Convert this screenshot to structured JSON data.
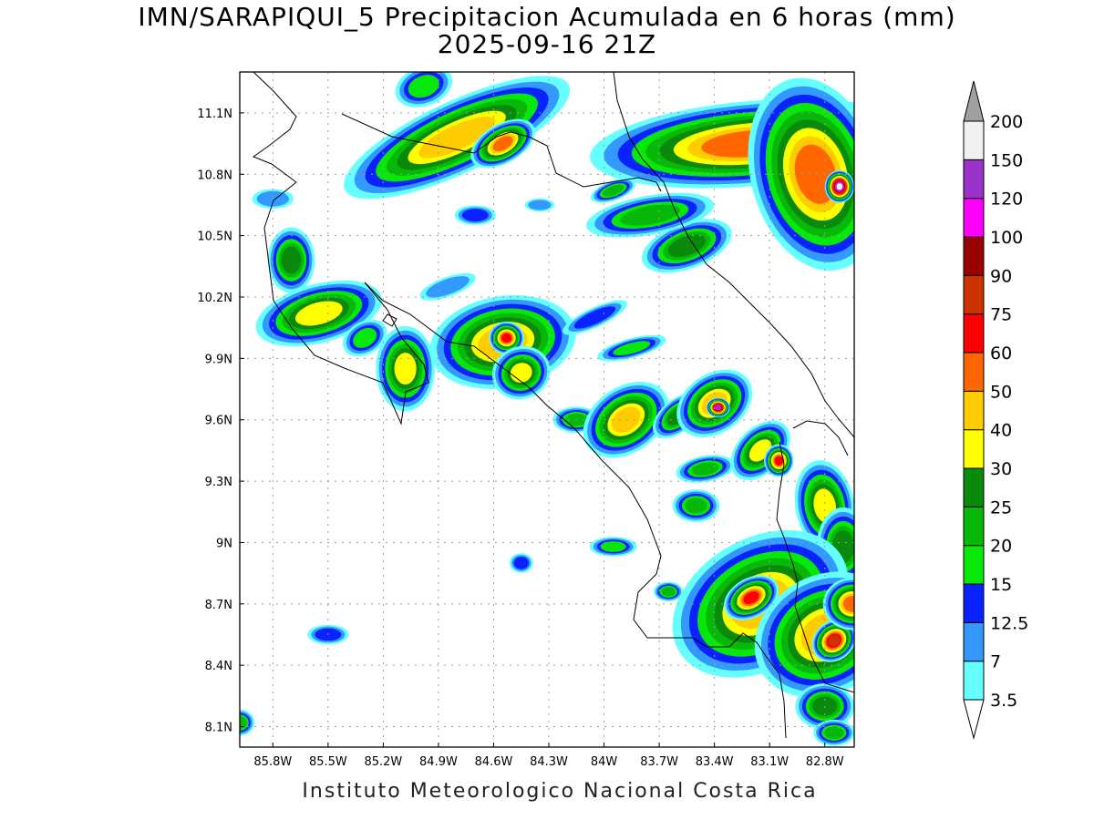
{
  "title_line1": "IMN/SARAPIQUI_5 Precipitacion Acumulada en 6 horas (mm)",
  "title_line2": "2025-09-16 21Z",
  "footer": "Instituto Meteorologico Nacional Costa Rica",
  "lat_labels": [
    "11.1N",
    "10.8N",
    "10.5N",
    "10.2N",
    "9.9N",
    "9.6N",
    "9.3N",
    "9N",
    "8.7N",
    "8.4N",
    "8.1N"
  ],
  "lat_values": [
    11.1,
    10.8,
    10.5,
    10.2,
    9.9,
    9.6,
    9.3,
    9.0,
    8.7,
    8.4,
    8.1
  ],
  "lon_labels": [
    "85.8W",
    "85.5W",
    "85.2W",
    "84.9W",
    "84.6W",
    "84.3W",
    "84W",
    "83.7W",
    "83.4W",
    "83.1W",
    "82.8W"
  ],
  "lon_values": [
    -85.8,
    -85.5,
    -85.2,
    -84.9,
    -84.6,
    -84.3,
    -84.0,
    -83.7,
    -83.4,
    -83.1,
    -82.8
  ],
  "colorbar": {
    "labels": [
      "3.5",
      "7",
      "12.5",
      "15",
      "20",
      "25",
      "30",
      "40",
      "50",
      "60",
      "75",
      "90",
      "100",
      "120",
      "150",
      "200"
    ],
    "colors": [
      "#66ffff",
      "#3399ff",
      "#0a22ff",
      "#08e808",
      "#08b808",
      "#0a8a0a",
      "#ffff00",
      "#ffcc00",
      "#ff6600",
      "#ff0000",
      "#cc3300",
      "#990000",
      "#ff00ff",
      "#9933cc",
      "#f0f0f0"
    ],
    "upper_arrow_color": "#a0a0a0",
    "lower_arrow_color": "#ffffff"
  },
  "precip_cells": [
    {
      "x": -84.8,
      "y": 10.98,
      "rx": 0.42,
      "ry": 0.11,
      "rot": -25,
      "level": 7
    },
    {
      "x": -84.55,
      "y": 10.95,
      "rx": 0.12,
      "ry": 0.06,
      "rot": -30,
      "level": 8
    },
    {
      "x": -84.98,
      "y": 11.23,
      "rx": 0.1,
      "ry": 0.06,
      "rot": -20,
      "level": 3
    },
    {
      "x": -83.2,
      "y": 10.95,
      "rx": 0.55,
      "ry": 0.13,
      "rot": -5,
      "level": 8
    },
    {
      "x": -82.85,
      "y": 10.8,
      "rx": 0.22,
      "ry": 0.3,
      "rot": -15,
      "level": 8
    },
    {
      "x": -82.72,
      "y": 10.74,
      "rx": 0.05,
      "ry": 0.05,
      "rot": 0,
      "level": 14
    },
    {
      "x": -83.55,
      "y": 10.45,
      "rx": 0.16,
      "ry": 0.07,
      "rot": -20,
      "level": 5
    },
    {
      "x": -83.75,
      "y": 10.6,
      "rx": 0.22,
      "ry": 0.06,
      "rot": -10,
      "level": 4
    },
    {
      "x": -85.7,
      "y": 10.38,
      "rx": 0.08,
      "ry": 0.1,
      "rot": 0,
      "level": 5
    },
    {
      "x": -85.55,
      "y": 10.12,
      "rx": 0.22,
      "ry": 0.09,
      "rot": -15,
      "level": 6
    },
    {
      "x": -85.3,
      "y": 10.0,
      "rx": 0.08,
      "ry": 0.05,
      "rot": -30,
      "level": 3
    },
    {
      "x": -85.08,
      "y": 9.85,
      "rx": 0.1,
      "ry": 0.13,
      "rot": 0,
      "level": 6
    },
    {
      "x": -84.55,
      "y": 9.98,
      "rx": 0.25,
      "ry": 0.14,
      "rot": -10,
      "level": 7
    },
    {
      "x": -84.53,
      "y": 10.0,
      "rx": 0.06,
      "ry": 0.05,
      "rot": 0,
      "level": 9
    },
    {
      "x": -84.45,
      "y": 9.83,
      "rx": 0.1,
      "ry": 0.08,
      "rot": -20,
      "level": 6
    },
    {
      "x": -84.15,
      "y": 9.6,
      "rx": 0.08,
      "ry": 0.04,
      "rot": 0,
      "level": 4
    },
    {
      "x": -83.88,
      "y": 9.6,
      "rx": 0.16,
      "ry": 0.1,
      "rot": -35,
      "level": 7
    },
    {
      "x": -83.6,
      "y": 9.62,
      "rx": 0.1,
      "ry": 0.05,
      "rot": -40,
      "level": 5
    },
    {
      "x": -83.4,
      "y": 9.68,
      "rx": 0.14,
      "ry": 0.09,
      "rot": -35,
      "level": 7
    },
    {
      "x": -83.38,
      "y": 9.66,
      "rx": 0.04,
      "ry": 0.03,
      "rot": 0,
      "level": 13
    },
    {
      "x": -83.15,
      "y": 9.45,
      "rx": 0.12,
      "ry": 0.07,
      "rot": -45,
      "level": 6
    },
    {
      "x": -83.05,
      "y": 9.4,
      "rx": 0.05,
      "ry": 0.05,
      "rot": 0,
      "level": 9
    },
    {
      "x": -83.45,
      "y": 9.36,
      "rx": 0.1,
      "ry": 0.04,
      "rot": -10,
      "level": 4
    },
    {
      "x": -83.5,
      "y": 9.18,
      "rx": 0.08,
      "ry": 0.05,
      "rot": 0,
      "level": 4
    },
    {
      "x": -82.8,
      "y": 9.18,
      "rx": 0.1,
      "ry": 0.14,
      "rot": -10,
      "level": 6
    },
    {
      "x": -82.7,
      "y": 8.98,
      "rx": 0.09,
      "ry": 0.12,
      "rot": 0,
      "level": 5
    },
    {
      "x": -83.15,
      "y": 8.7,
      "rx": 0.32,
      "ry": 0.2,
      "rot": -30,
      "level": 7
    },
    {
      "x": -83.2,
      "y": 8.73,
      "rx": 0.1,
      "ry": 0.06,
      "rot": -30,
      "level": 9
    },
    {
      "x": -82.8,
      "y": 8.55,
      "rx": 0.25,
      "ry": 0.18,
      "rot": -30,
      "level": 7
    },
    {
      "x": -82.75,
      "y": 8.52,
      "rx": 0.08,
      "ry": 0.06,
      "rot": -40,
      "level": 10
    },
    {
      "x": -82.65,
      "y": 8.7,
      "rx": 0.1,
      "ry": 0.08,
      "rot": 0,
      "level": 8
    },
    {
      "x": -82.8,
      "y": 8.2,
      "rx": 0.1,
      "ry": 0.07,
      "rot": 0,
      "level": 5
    },
    {
      "x": -82.75,
      "y": 8.07,
      "rx": 0.07,
      "ry": 0.04,
      "rot": 0,
      "level": 4
    },
    {
      "x": -83.65,
      "y": 8.76,
      "rx": 0.05,
      "ry": 0.03,
      "rot": 0,
      "level": 4
    },
    {
      "x": -85.98,
      "y": 8.12,
      "rx": 0.05,
      "ry": 0.04,
      "rot": 0,
      "level": 4
    },
    {
      "x": -83.95,
      "y": 8.98,
      "rx": 0.08,
      "ry": 0.03,
      "rot": 0,
      "level": 3
    },
    {
      "x": -85.5,
      "y": 8.55,
      "rx": 0.07,
      "ry": 0.03,
      "rot": 0,
      "level": 2
    },
    {
      "x": -84.45,
      "y": 8.9,
      "rx": 0.04,
      "ry": 0.03,
      "rot": 0,
      "level": 2
    },
    {
      "x": -85.8,
      "y": 10.68,
      "rx": 0.07,
      "ry": 0.03,
      "rot": 0,
      "level": 1
    },
    {
      "x": -84.7,
      "y": 10.6,
      "rx": 0.07,
      "ry": 0.03,
      "rot": 0,
      "level": 2
    },
    {
      "x": -84.35,
      "y": 10.65,
      "rx": 0.05,
      "ry": 0.02,
      "rot": 0,
      "level": 1
    },
    {
      "x": -83.95,
      "y": 10.72,
      "rx": 0.08,
      "ry": 0.03,
      "rot": -20,
      "level": 4
    },
    {
      "x": -84.05,
      "y": 10.1,
      "rx": 0.12,
      "ry": 0.03,
      "rot": -25,
      "level": 2
    },
    {
      "x": -83.85,
      "y": 9.95,
      "rx": 0.12,
      "ry": 0.03,
      "rot": -15,
      "level": 3
    },
    {
      "x": -84.85,
      "y": 10.25,
      "rx": 0.1,
      "ry": 0.03,
      "rot": -20,
      "level": 1
    }
  ]
}
